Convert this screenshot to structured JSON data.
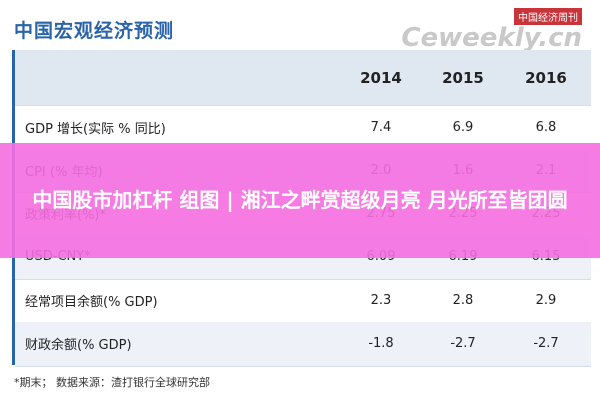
{
  "header": {
    "title": "中国宏观经济预测",
    "watermark_top": "中国经济周刊",
    "watermark_main": "Ceweekly.cn"
  },
  "table": {
    "columns": [
      "2014",
      "2015",
      "2016"
    ],
    "rows": [
      [
        "GDP 增长(实际 % 同比)",
        "7.4",
        "6.9",
        "6.8"
      ],
      [
        "CPI (% 年均)",
        "2.0",
        "1.6",
        "2.1"
      ],
      [
        "政策利率(%)*",
        "2.75",
        "2.25",
        "2.25"
      ],
      [
        "USD-CNY*",
        "6.09",
        "6.19",
        "6.15"
      ],
      [
        "经常项目余额(% GDP)",
        "2.3",
        "2.8",
        "2.9"
      ],
      [
        "财政余额(% GDP)",
        "-1.8",
        "-2.7",
        "-2.7"
      ]
    ]
  },
  "footnote": "*期末；  数据来源：渣打银行全球研究部",
  "banner": "中国股市加杠杆 组图 | 湘江之畔赏超级月亮 月光所至皆团圆"
}
